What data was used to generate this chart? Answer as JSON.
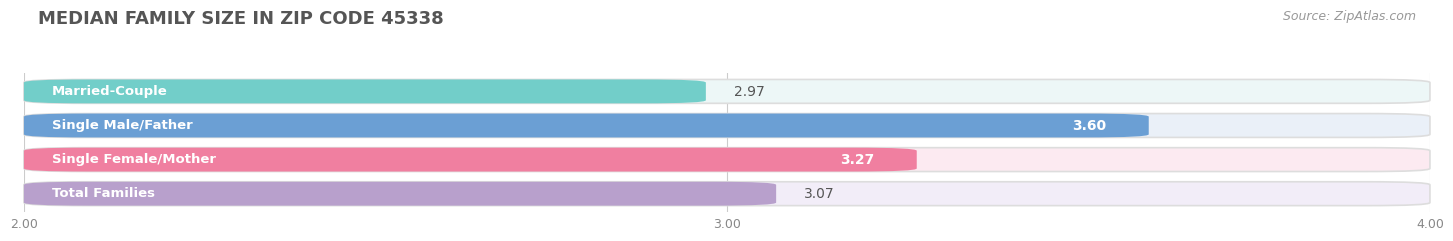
{
  "title": "MEDIAN FAMILY SIZE IN ZIP CODE 45338",
  "source": "Source: ZipAtlas.com",
  "categories": [
    "Married-Couple",
    "Single Male/Father",
    "Single Female/Mother",
    "Total Families"
  ],
  "values": [
    2.97,
    3.6,
    3.27,
    3.07
  ],
  "bar_colors": [
    "#72cec9",
    "#6b9fd4",
    "#f07fa0",
    "#b8a0cc"
  ],
  "bar_bg_colors": [
    "#edf7f7",
    "#eaf0f8",
    "#fceaf1",
    "#f2edf8"
  ],
  "value_colors": [
    "#555555",
    "#ffffff",
    "#ffffff",
    "#555555"
  ],
  "xlim": [
    2.0,
    4.0
  ],
  "xticks": [
    2.0,
    3.0,
    4.0
  ],
  "xtick_labels": [
    "2.00",
    "3.00",
    "4.00"
  ],
  "value_fontsize": 10,
  "label_fontsize": 9.5,
  "title_fontsize": 13,
  "source_fontsize": 9,
  "bg_color": "#ffffff"
}
